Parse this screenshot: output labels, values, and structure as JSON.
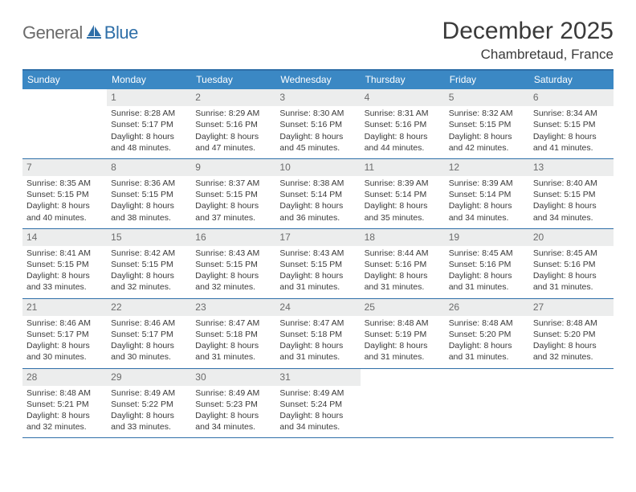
{
  "logo": {
    "general": "General",
    "blue": "Blue",
    "icon_color": "#2f6fa8"
  },
  "header": {
    "month": "December 2025",
    "location": "Chambretaud, France"
  },
  "colors": {
    "header_bar": "#3b88c4",
    "border": "#2f6fa8",
    "day_header_bg": "#eceded",
    "text": "#3a3a3a",
    "muted": "#6b6b6b",
    "white": "#ffffff"
  },
  "weekdays": [
    "Sunday",
    "Monday",
    "Tuesday",
    "Wednesday",
    "Thursday",
    "Friday",
    "Saturday"
  ],
  "weeks": [
    [
      null,
      {
        "n": "1",
        "sr": "8:28 AM",
        "ss": "5:17 PM",
        "dl": "8 hours and 48 minutes."
      },
      {
        "n": "2",
        "sr": "8:29 AM",
        "ss": "5:16 PM",
        "dl": "8 hours and 47 minutes."
      },
      {
        "n": "3",
        "sr": "8:30 AM",
        "ss": "5:16 PM",
        "dl": "8 hours and 45 minutes."
      },
      {
        "n": "4",
        "sr": "8:31 AM",
        "ss": "5:16 PM",
        "dl": "8 hours and 44 minutes."
      },
      {
        "n": "5",
        "sr": "8:32 AM",
        "ss": "5:15 PM",
        "dl": "8 hours and 42 minutes."
      },
      {
        "n": "6",
        "sr": "8:34 AM",
        "ss": "5:15 PM",
        "dl": "8 hours and 41 minutes."
      }
    ],
    [
      {
        "n": "7",
        "sr": "8:35 AM",
        "ss": "5:15 PM",
        "dl": "8 hours and 40 minutes."
      },
      {
        "n": "8",
        "sr": "8:36 AM",
        "ss": "5:15 PM",
        "dl": "8 hours and 38 minutes."
      },
      {
        "n": "9",
        "sr": "8:37 AM",
        "ss": "5:15 PM",
        "dl": "8 hours and 37 minutes."
      },
      {
        "n": "10",
        "sr": "8:38 AM",
        "ss": "5:14 PM",
        "dl": "8 hours and 36 minutes."
      },
      {
        "n": "11",
        "sr": "8:39 AM",
        "ss": "5:14 PM",
        "dl": "8 hours and 35 minutes."
      },
      {
        "n": "12",
        "sr": "8:39 AM",
        "ss": "5:14 PM",
        "dl": "8 hours and 34 minutes."
      },
      {
        "n": "13",
        "sr": "8:40 AM",
        "ss": "5:15 PM",
        "dl": "8 hours and 34 minutes."
      }
    ],
    [
      {
        "n": "14",
        "sr": "8:41 AM",
        "ss": "5:15 PM",
        "dl": "8 hours and 33 minutes."
      },
      {
        "n": "15",
        "sr": "8:42 AM",
        "ss": "5:15 PM",
        "dl": "8 hours and 32 minutes."
      },
      {
        "n": "16",
        "sr": "8:43 AM",
        "ss": "5:15 PM",
        "dl": "8 hours and 32 minutes."
      },
      {
        "n": "17",
        "sr": "8:43 AM",
        "ss": "5:15 PM",
        "dl": "8 hours and 31 minutes."
      },
      {
        "n": "18",
        "sr": "8:44 AM",
        "ss": "5:16 PM",
        "dl": "8 hours and 31 minutes."
      },
      {
        "n": "19",
        "sr": "8:45 AM",
        "ss": "5:16 PM",
        "dl": "8 hours and 31 minutes."
      },
      {
        "n": "20",
        "sr": "8:45 AM",
        "ss": "5:16 PM",
        "dl": "8 hours and 31 minutes."
      }
    ],
    [
      {
        "n": "21",
        "sr": "8:46 AM",
        "ss": "5:17 PM",
        "dl": "8 hours and 30 minutes."
      },
      {
        "n": "22",
        "sr": "8:46 AM",
        "ss": "5:17 PM",
        "dl": "8 hours and 30 minutes."
      },
      {
        "n": "23",
        "sr": "8:47 AM",
        "ss": "5:18 PM",
        "dl": "8 hours and 31 minutes."
      },
      {
        "n": "24",
        "sr": "8:47 AM",
        "ss": "5:18 PM",
        "dl": "8 hours and 31 minutes."
      },
      {
        "n": "25",
        "sr": "8:48 AM",
        "ss": "5:19 PM",
        "dl": "8 hours and 31 minutes."
      },
      {
        "n": "26",
        "sr": "8:48 AM",
        "ss": "5:20 PM",
        "dl": "8 hours and 31 minutes."
      },
      {
        "n": "27",
        "sr": "8:48 AM",
        "ss": "5:20 PM",
        "dl": "8 hours and 32 minutes."
      }
    ],
    [
      {
        "n": "28",
        "sr": "8:48 AM",
        "ss": "5:21 PM",
        "dl": "8 hours and 32 minutes."
      },
      {
        "n": "29",
        "sr": "8:49 AM",
        "ss": "5:22 PM",
        "dl": "8 hours and 33 minutes."
      },
      {
        "n": "30",
        "sr": "8:49 AM",
        "ss": "5:23 PM",
        "dl": "8 hours and 34 minutes."
      },
      {
        "n": "31",
        "sr": "8:49 AM",
        "ss": "5:24 PM",
        "dl": "8 hours and 34 minutes."
      },
      null,
      null,
      null
    ]
  ],
  "labels": {
    "sunrise": "Sunrise:",
    "sunset": "Sunset:",
    "daylight": "Daylight:"
  }
}
